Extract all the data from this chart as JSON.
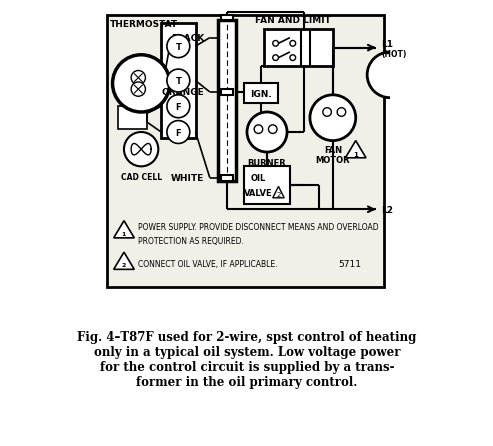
{
  "bg_color": "#ffffff",
  "diagram_bg": "#f0f0e8",
  "line_color": "#000000",
  "title": "THERMOSTAT",
  "fan_limit_label": "FAN AND LIMIT",
  "black_label": "BLACK",
  "orange_label": "ORANGE",
  "white_label": "WHITE",
  "cad_cell_label": "CAD CELL",
  "l1_label": "L1\n(HOT)",
  "l2_label": "L2",
  "ign_label": "IGN.",
  "burner_label": "BURNER",
  "oil_valve_label1": "OIL",
  "oil_valve_label2": "VALVE",
  "fan_motor_label": "FAN\nMOTOR",
  "note1a": "POWER SUPPLY. PROVIDE DISCONNECT MEANS AND OVERLOAD",
  "note1b": "PROTECTION AS REQUIRED.",
  "note2": "CONNECT OIL VALVE, IF APPLICABLE.",
  "num_label": "5711",
  "caption": "Fig. 4–T87F used for 2-wire, spst control of heating\nonly in a typical oil system. Low voltage power\nfor the control circuit is supplied by a trans-\nformer in the oil primary control.",
  "caption_fontsize": 8.5
}
